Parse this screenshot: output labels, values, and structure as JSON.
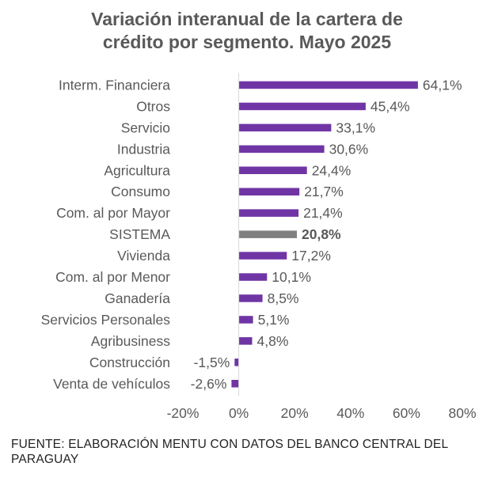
{
  "chart_data": {
    "type": "bar",
    "orientation": "horizontal",
    "title_lines": [
      "Variación interanual de la cartera de",
      "crédito por segmento. Mayo 2025"
    ],
    "categories": [
      "Interm. Financiera",
      "Otros",
      "Servicio",
      "Industria",
      "Agricultura",
      "Consumo",
      "Com. al por Mayor",
      "SISTEMA",
      "Vivienda",
      "Com. al por Menor",
      "Ganadería",
      "Servicios Personales",
      "Agribusiness",
      "Construcción",
      "Venta de vehículos"
    ],
    "values": [
      64.1,
      45.4,
      33.1,
      30.6,
      24.4,
      21.7,
      21.4,
      20.8,
      17.2,
      10.1,
      8.5,
      5.1,
      4.8,
      -1.5,
      -2.6
    ],
    "data_labels": [
      "64,1%",
      "45,4%",
      "33,1%",
      "30,6%",
      "24,4%",
      "21,7%",
      "21,4%",
      "20,8%",
      "17,2%",
      "10,1%",
      "8,5%",
      "5,1%",
      "4,8%",
      "-1,5%",
      "-2,6%"
    ],
    "highlight_category": "SISTEMA",
    "xlim": [
      -20,
      80
    ],
    "xticks": [
      -20,
      0,
      20,
      40,
      60,
      80
    ],
    "xtick_labels": [
      "-20%",
      "0%",
      "20%",
      "40%",
      "60%",
      "80%"
    ],
    "grid": false,
    "legend": "none",
    "colors": {
      "bar": "#6f35a5",
      "highlight": "#808080",
      "text": "#595959"
    }
  },
  "source": "FUENTE: ELABORACIÓN MENTU CON DATOS DEL BANCO CENTRAL DEL PARAGUAY"
}
